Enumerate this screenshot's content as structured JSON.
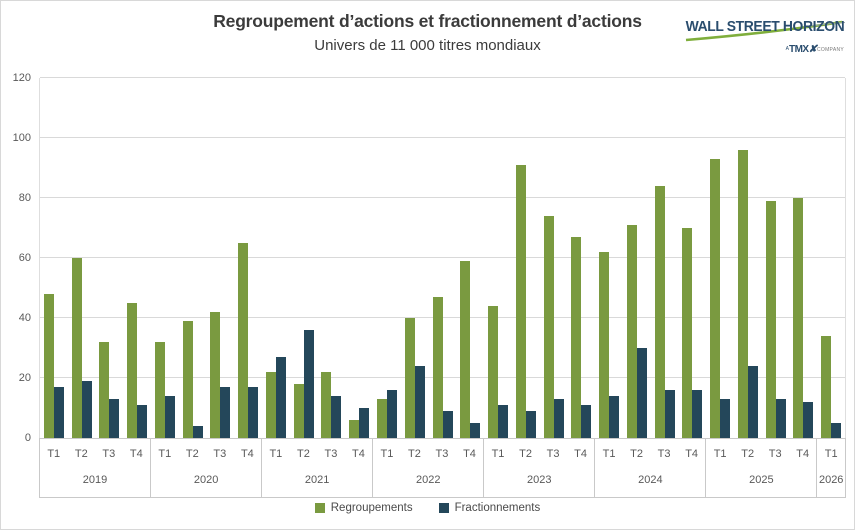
{
  "header": {
    "title": "Regroupement d’actions et fractionnement d’actions",
    "subtitle": "Univers de 11 000 titres mondiaux"
  },
  "logo": {
    "name": "WALL STREET HORIZON",
    "tagline_prefix": "A",
    "tagline_brand": "TMX",
    "tagline_suffix": "COMPANY",
    "name_color": "#2a4d6e",
    "swoosh_color": "#7fae3c"
  },
  "chart_data": {
    "type": "bar",
    "title": "Regroupement d’actions et fractionnement d’actions",
    "subtitle": "Univers de 11 000 titres mondiaux",
    "grid": true,
    "legend_position": "bottom",
    "y_axis": {
      "min": 0,
      "max": 120,
      "step": 20,
      "ticks": [
        0,
        20,
        40,
        60,
        80,
        100,
        120
      ]
    },
    "x_axis": {
      "quarter_label_prefix": "T",
      "years": [
        "2019",
        "2020",
        "2021",
        "2022",
        "2023",
        "2024",
        "2025",
        "2026"
      ]
    },
    "series": [
      {
        "name": "Regroupements",
        "color": "#7a9a40"
      },
      {
        "name": "Fractionnements",
        "color": "#24475a"
      }
    ],
    "groups": [
      {
        "year": "2019",
        "quarters": [
          "T1",
          "T2",
          "T3",
          "T4"
        ],
        "regroupements": [
          48,
          60,
          32,
          45
        ],
        "fractionnements": [
          17,
          19,
          13,
          11
        ]
      },
      {
        "year": "2020",
        "quarters": [
          "T1",
          "T2",
          "T3",
          "T4"
        ],
        "regroupements": [
          32,
          39,
          42,
          65
        ],
        "fractionnements": [
          14,
          4,
          17,
          17
        ]
      },
      {
        "year": "2021",
        "quarters": [
          "T1",
          "T2",
          "T3",
          "T4"
        ],
        "regroupements": [
          22,
          18,
          22,
          6
        ],
        "fractionnements": [
          27,
          36,
          14,
          10
        ]
      },
      {
        "year": "2022",
        "quarters": [
          "T1",
          "T2",
          "T3",
          "T4"
        ],
        "regroupements": [
          13,
          40,
          47,
          59
        ],
        "fractionnements": [
          16,
          24,
          9,
          5
        ]
      },
      {
        "year": "2023",
        "quarters": [
          "T1",
          "T2",
          "T3",
          "T4"
        ],
        "regroupements": [
          44,
          91,
          74,
          67
        ],
        "fractionnements": [
          11,
          9,
          13,
          11
        ]
      },
      {
        "year": "2024",
        "quarters": [
          "T1",
          "T2",
          "T3",
          "T4"
        ],
        "regroupements": [
          62,
          71,
          84,
          70
        ],
        "fractionnements": [
          14,
          30,
          16,
          16
        ]
      },
      {
        "year": "2025",
        "quarters": [
          "T1",
          "T2",
          "T3",
          "T4"
        ],
        "regroupements": [
          93,
          96,
          79,
          80
        ],
        "fractionnements": [
          13,
          24,
          13,
          12
        ]
      },
      {
        "year": "2026",
        "quarters": [
          "T1"
        ],
        "regroupements": [
          34
        ],
        "fractionnements": [
          5
        ]
      }
    ]
  },
  "legend": {
    "items": [
      {
        "label": "Regroupements",
        "color": "#7a9a40"
      },
      {
        "label": "Fractionnements",
        "color": "#24475a"
      }
    ]
  }
}
